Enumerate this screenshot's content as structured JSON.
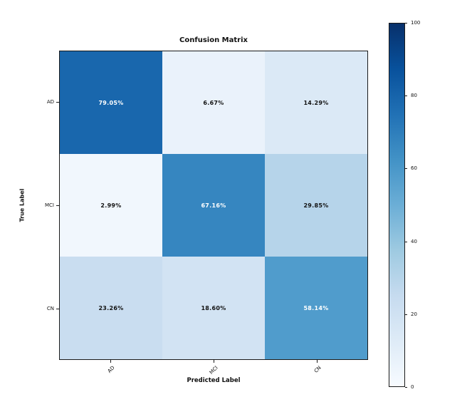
{
  "figure": {
    "background": "#ffffff",
    "axis_color": "#1a1a1a",
    "text_color": "#111111"
  },
  "chart_data": {
    "type": "heatmap",
    "title": "Confusion Matrix",
    "xlabel": "Predicted Label",
    "ylabel": "True Label",
    "x_categories": [
      "AD",
      "MCI",
      "CN"
    ],
    "y_categories": [
      "AD",
      "MCI",
      "CN"
    ],
    "values": [
      [
        79.05,
        6.67,
        14.29
      ],
      [
        2.99,
        67.16,
        29.85
      ],
      [
        23.26,
        18.6,
        58.14
      ]
    ],
    "cell_labels": [
      [
        "79.05%",
        "6.67%",
        "14.29%"
      ],
      [
        "2.99%",
        "67.16%",
        "29.85%"
      ],
      [
        "23.26%",
        "18.60%",
        "58.14%"
      ]
    ],
    "cell_colors": [
      [
        "#1967ad",
        "#eaf2fb",
        "#dbe9f6"
      ],
      [
        "#f1f7fd",
        "#3686c0",
        "#b6d4ea"
      ],
      [
        "#c9ddf0",
        "#d2e3f3",
        "#509ccc"
      ]
    ],
    "cell_text_colors": [
      [
        "#ffffff",
        "#111111",
        "#111111"
      ],
      [
        "#111111",
        "#ffffff",
        "#111111"
      ],
      [
        "#111111",
        "#111111",
        "#ffffff"
      ]
    ],
    "grid": false,
    "colormap": "Blues",
    "colorbar": {
      "position": "right",
      "vmin": 0,
      "vmax": 100,
      "ticks": [
        "0",
        "20",
        "40",
        "60",
        "80",
        "100"
      ],
      "gradient_stops": [
        "#f7fbff",
        "#deebf7",
        "#c6dbef",
        "#9ecae1",
        "#6baed6",
        "#4292c6",
        "#2171b5",
        "#08519c",
        "#08306b"
      ]
    }
  }
}
